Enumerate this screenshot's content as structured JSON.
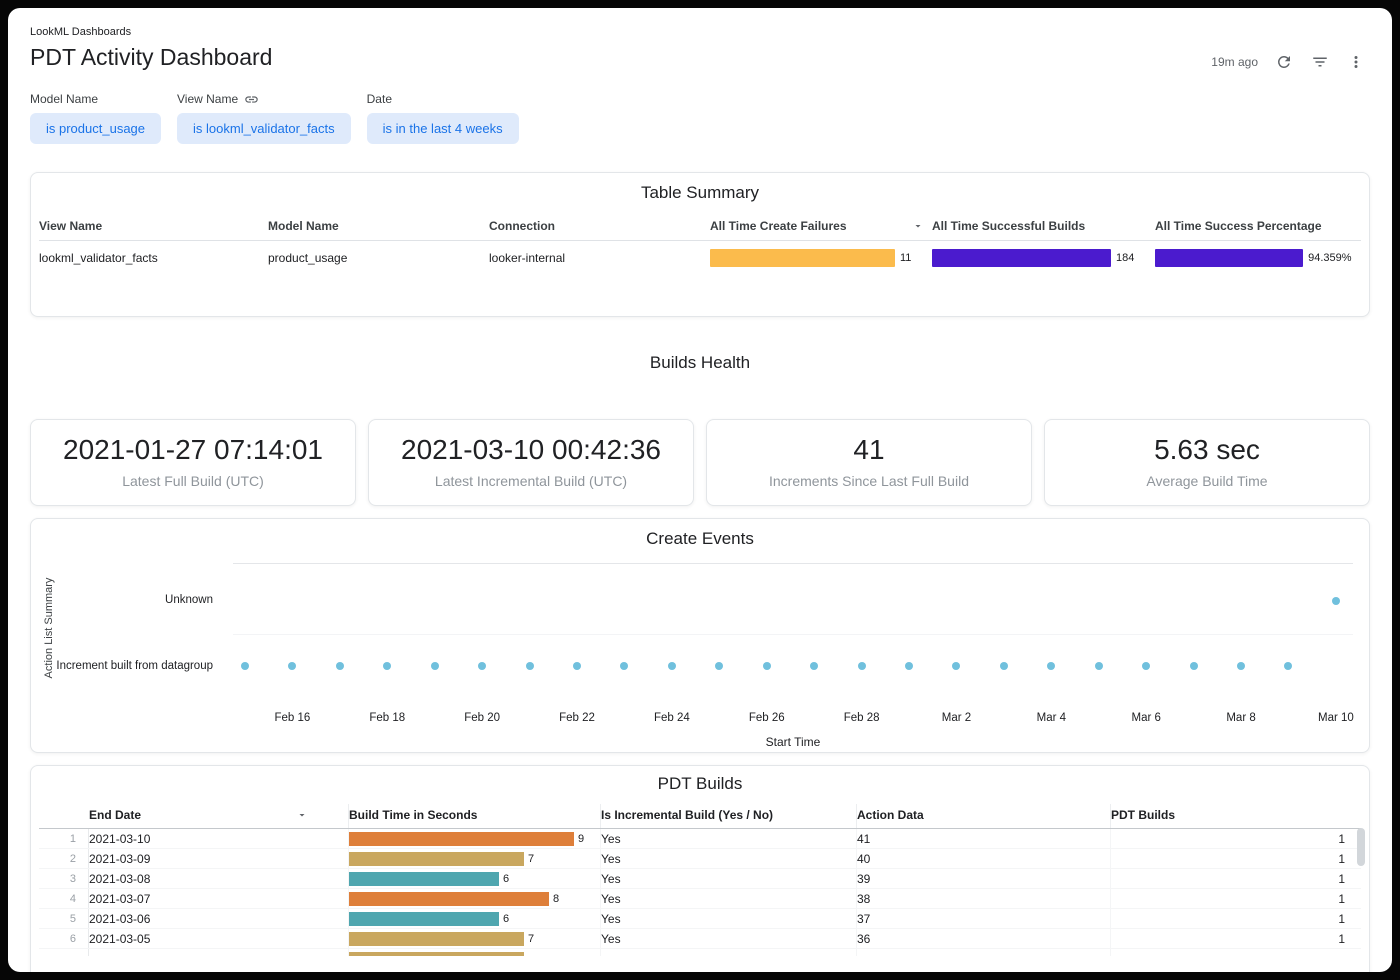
{
  "header": {
    "breadcrumb": "LookML Dashboards",
    "title": "PDT Activity Dashboard",
    "refresh_age": "19m ago"
  },
  "icons": {
    "refresh": "⟳",
    "filter": "≡",
    "more": "⋮",
    "link": "🔗",
    "sort": "▾"
  },
  "colors": {
    "chip_bg": "#dfeafb",
    "chip_text": "#1a73e8",
    "bar_orange": "#fbbb4c",
    "bar_purple": "#4b1bce",
    "dot_blue": "#70c0dd",
    "row_orange": "#de7f3a",
    "row_tan": "#c9a75f",
    "row_teal": "#4fa6af"
  },
  "filters": {
    "items": [
      {
        "label": "Model Name",
        "value": "is product_usage"
      },
      {
        "label": "View Name",
        "value": "is lookml_validator_facts"
      },
      {
        "label": "Date",
        "value": "is in the last 4 weeks"
      }
    ]
  },
  "table_summary": {
    "title": "Table Summary",
    "columns": [
      "View Name",
      "Model Name",
      "Connection",
      "All Time Create Failures",
      "All Time Successful Builds",
      "All Time Success Percentage"
    ],
    "row": {
      "view_name": "lookml_validator_facts",
      "model_name": "product_usage",
      "connection": "looker-internal",
      "create_failures": {
        "value": "11"
      },
      "successful_builds": {
        "value": "184"
      },
      "success_percentage": {
        "value": "94.359%"
      }
    }
  },
  "builds_health": {
    "title": "Builds Health",
    "kpis": [
      {
        "value": "2021-01-27 07:14:01",
        "label": "Latest Full Build (UTC)"
      },
      {
        "value": "2021-03-10 00:42:36",
        "label": "Latest Incremental Build (UTC)"
      },
      {
        "value": "41",
        "label": "Increments Since Last Full Build"
      },
      {
        "value": "5.63 sec",
        "label": "Average Build Time"
      }
    ]
  },
  "chart_data": [
    {
      "id": "create_events",
      "type": "scatter",
      "title": "Create Events",
      "xlabel": "Start Time",
      "ylabel": "Action List Summary",
      "y_categories": [
        "Unknown",
        "Increment built from datagroup"
      ],
      "dot_color": "#70c0dd",
      "x_ticks": [
        {
          "label": "Feb 16",
          "day": 0
        },
        {
          "label": "Feb 18",
          "day": 2
        },
        {
          "label": "Feb 20",
          "day": 4
        },
        {
          "label": "Feb 22",
          "day": 6
        },
        {
          "label": "Feb 24",
          "day": 8
        },
        {
          "label": "Feb 26",
          "day": 10
        },
        {
          "label": "Feb 28",
          "day": 12
        },
        {
          "label": "Mar 2",
          "day": 14
        },
        {
          "label": "Mar 4",
          "day": 16
        },
        {
          "label": "Mar 6",
          "day": 18
        },
        {
          "label": "Mar 8",
          "day": 20
        },
        {
          "label": "Mar 10",
          "day": 22
        }
      ],
      "points": [
        {
          "date": "Feb 15",
          "day": -1,
          "cat": 1
        },
        {
          "date": "Feb 16",
          "day": 0,
          "cat": 1
        },
        {
          "date": "Feb 17",
          "day": 1,
          "cat": 1
        },
        {
          "date": "Feb 18",
          "day": 2,
          "cat": 1
        },
        {
          "date": "Feb 19",
          "day": 3,
          "cat": 1
        },
        {
          "date": "Feb 20",
          "day": 4,
          "cat": 1
        },
        {
          "date": "Feb 21",
          "day": 5,
          "cat": 1
        },
        {
          "date": "Feb 22",
          "day": 6,
          "cat": 1
        },
        {
          "date": "Feb 23",
          "day": 7,
          "cat": 1
        },
        {
          "date": "Feb 24",
          "day": 8,
          "cat": 1
        },
        {
          "date": "Feb 25",
          "day": 9,
          "cat": 1
        },
        {
          "date": "Feb 26",
          "day": 10,
          "cat": 1
        },
        {
          "date": "Feb 27",
          "day": 11,
          "cat": 1
        },
        {
          "date": "Feb 28",
          "day": 12,
          "cat": 1
        },
        {
          "date": "Mar 1",
          "day": 13,
          "cat": 1
        },
        {
          "date": "Mar 2",
          "day": 14,
          "cat": 1
        },
        {
          "date": "Mar 3",
          "day": 15,
          "cat": 1
        },
        {
          "date": "Mar 4",
          "day": 16,
          "cat": 1
        },
        {
          "date": "Mar 5",
          "day": 17,
          "cat": 1
        },
        {
          "date": "Mar 6",
          "day": 18,
          "cat": 1
        },
        {
          "date": "Mar 7",
          "day": 19,
          "cat": 1
        },
        {
          "date": "Mar 8",
          "day": 20,
          "cat": 1
        },
        {
          "date": "Mar 9",
          "day": 21,
          "cat": 1
        },
        {
          "date": "Mar 10",
          "day": 22,
          "cat": 0
        }
      ]
    }
  ],
  "pdt_builds": {
    "title": "PDT Builds",
    "columns": [
      "End Date",
      "Build Time in Seconds",
      "Is Incremental Build (Yes / No)",
      "Action Data",
      "PDT Builds"
    ],
    "rows": [
      {
        "index": "1",
        "end_date": "2021-03-10",
        "build_time_seconds": 9,
        "build_time_label": "9",
        "bar_color": "orange",
        "is_incremental": "Yes",
        "action_data": "41",
        "pdt_builds": "1"
      },
      {
        "index": "2",
        "end_date": "2021-03-09",
        "build_time_seconds": 7,
        "build_time_label": "7",
        "bar_color": "tan",
        "is_incremental": "Yes",
        "action_data": "40",
        "pdt_builds": "1"
      },
      {
        "index": "3",
        "end_date": "2021-03-08",
        "build_time_seconds": 6,
        "build_time_label": "6",
        "bar_color": "teal",
        "is_incremental": "Yes",
        "action_data": "39",
        "pdt_builds": "1"
      },
      {
        "index": "4",
        "end_date": "2021-03-07",
        "build_time_seconds": 8,
        "build_time_label": "8",
        "bar_color": "orange",
        "is_incremental": "Yes",
        "action_data": "38",
        "pdt_builds": "1"
      },
      {
        "index": "5",
        "end_date": "2021-03-06",
        "build_time_seconds": 6,
        "build_time_label": "6",
        "bar_color": "teal",
        "is_incremental": "Yes",
        "action_data": "37",
        "pdt_builds": "1"
      },
      {
        "index": "6",
        "end_date": "2021-03-05",
        "build_time_seconds": 7,
        "build_time_label": "7",
        "bar_color": "tan",
        "is_incremental": "Yes",
        "action_data": "36",
        "pdt_builds": "1"
      },
      {
        "index": "",
        "end_date": "",
        "build_time_seconds": 7,
        "build_time_label": "",
        "bar_color": "tan",
        "is_incremental": "",
        "action_data": "",
        "pdt_builds": ""
      }
    ]
  }
}
